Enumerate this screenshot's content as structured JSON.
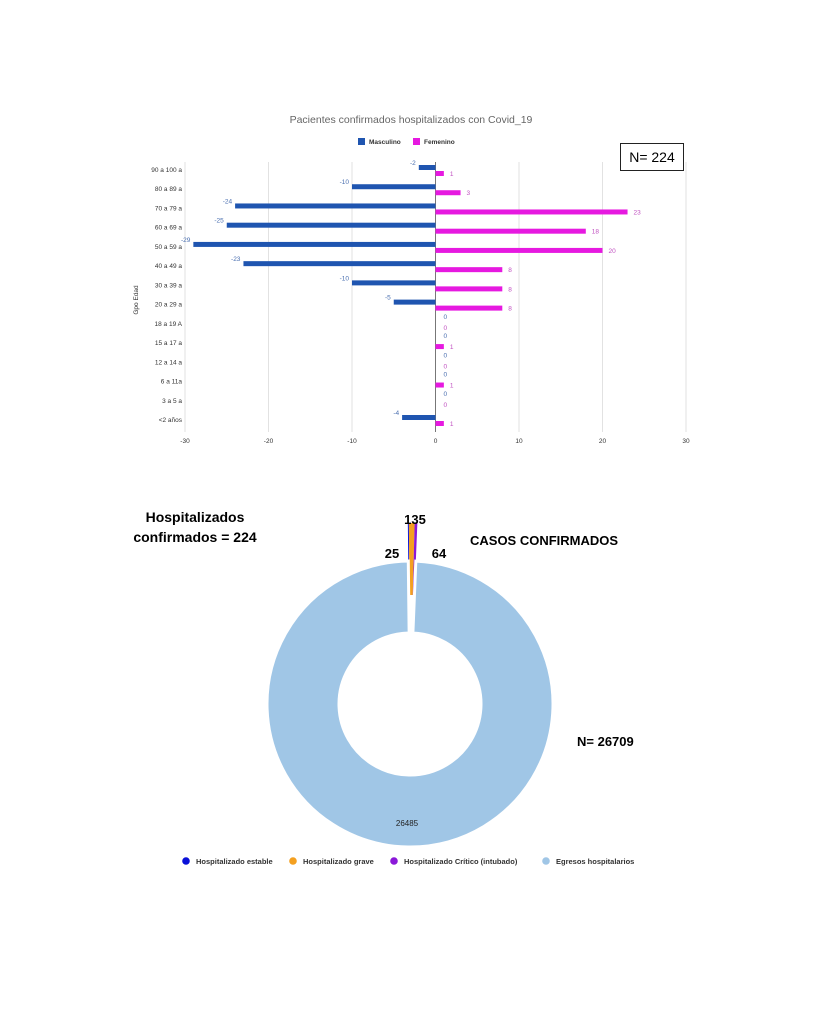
{
  "chart_data": [
    {
      "type": "bar",
      "orientation": "horizontal",
      "title": "Pacientes confirmados hospitalizados con Covid_19",
      "ylabel": "Gpo Edad",
      "xlabel": "",
      "xlim": [
        -30,
        30
      ],
      "xticks": [
        -30,
        -20,
        -10,
        0,
        10,
        20,
        30
      ],
      "grid": true,
      "legend": "top",
      "annotation": "N= 224",
      "categories": [
        "90 a 100 a",
        "80 a 89 a",
        "70 a 79 a",
        "60 a 69 a",
        "50 a 59 a",
        "40 a 49 a",
        "30 a 39 a",
        "20 a 29 a",
        "18 a 19 A",
        "15 a 17 a",
        "12 a 14 a",
        "6 a 11a",
        "3 a 5 a",
        "<2 años"
      ],
      "series": [
        {
          "name": "Masculino",
          "color": "#1f55b0",
          "values": [
            -2,
            -10,
            -24,
            -25,
            -29,
            -23,
            -10,
            -5,
            0,
            0,
            0,
            0,
            0,
            -4
          ]
        },
        {
          "name": "Femenino",
          "color": "#e619e0",
          "values": [
            1,
            3,
            23,
            18,
            20,
            8,
            8,
            8,
            0,
            1,
            0,
            1,
            0,
            1
          ]
        }
      ]
    },
    {
      "type": "pie",
      "donut": true,
      "title": "CASOS CONFIRMADOS",
      "annotation_left": "Hospitalizados confirmados = 224",
      "annotation_right": "N= 26709",
      "legend": "bottom",
      "slices": [
        {
          "label": "Hospitalizado estable",
          "value": 25,
          "color": "#0a10d8"
        },
        {
          "label": "Hospitalizado grave",
          "value": 135,
          "color": "#f4a020"
        },
        {
          "label": "Hospitalizado Crítico (intubado)",
          "value": 64,
          "color": "#8a18d8"
        },
        {
          "label": "Egresos hospitalarios",
          "value": 26485,
          "color": "#a0c6e6"
        }
      ]
    }
  ]
}
